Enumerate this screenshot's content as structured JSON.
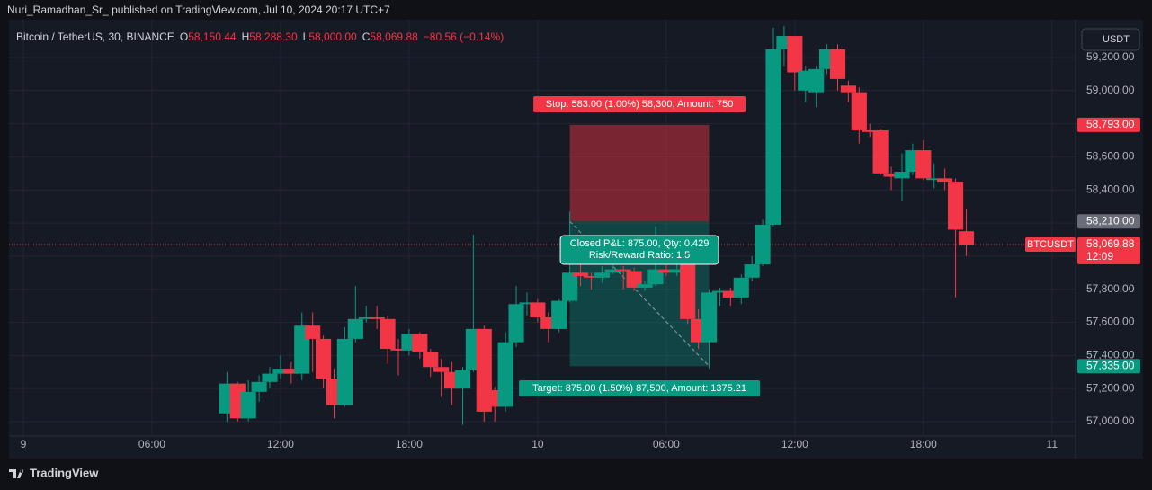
{
  "header": {
    "publisher": "Nuri_Ramadhan_Sr_ published on TradingView.com, Jul 10, 2024 20:17 UTC+7"
  },
  "footer": {
    "brand": "TradingView"
  },
  "chart_data": {
    "type": "candlestick",
    "legend": {
      "symbol": "Bitcoin / TetherUS, 30, BINANCE",
      "items": [
        {
          "key": "O",
          "value": "58,150.44"
        },
        {
          "key": "H",
          "value": "58,288.30"
        },
        {
          "key": "L",
          "value": "58,000.00"
        },
        {
          "key": "C",
          "value": "58,069.88"
        }
      ],
      "change": "−80.56 (−0.14%)"
    },
    "currency": "USDT",
    "up_color": "#089981",
    "down_color": "#f23645",
    "xlim": [
      -0.67,
      49.1
    ],
    "xticks": [
      {
        "value": 0,
        "label": "9"
      },
      {
        "value": 6,
        "label": "06:00"
      },
      {
        "value": 12,
        "label": "12:00"
      },
      {
        "value": 18,
        "label": "18:00"
      },
      {
        "value": 24,
        "label": "10"
      },
      {
        "value": 30,
        "label": "06:00"
      },
      {
        "value": 36,
        "label": "12:00"
      },
      {
        "value": 42,
        "label": "18:00"
      },
      {
        "value": 48,
        "label": "11"
      }
    ],
    "ylim": [
      56913,
      59428
    ],
    "yticks": [
      {
        "value": 57000,
        "label": "57,000.00"
      },
      {
        "value": 57200,
        "label": "57,200.00"
      },
      {
        "value": 57400,
        "label": "57,400.00"
      },
      {
        "value": 57600,
        "label": "57,600.00"
      },
      {
        "value": 57800,
        "label": "57,800.00"
      },
      {
        "value": 58000,
        "label": "58,000.00"
      },
      {
        "value": 58200,
        "label": "58,200.00"
      },
      {
        "value": 58400,
        "label": "58,400.00"
      },
      {
        "value": 58600,
        "label": "58,600.00"
      },
      {
        "value": 58800,
        "label": "58,800.00"
      },
      {
        "value": 59000,
        "label": "59,000.00"
      },
      {
        "value": 59200,
        "label": "59,200.00"
      }
    ],
    "grid": true,
    "x": [
      9.5,
      10,
      10.5,
      11,
      11.5,
      12,
      12.5,
      13,
      13.5,
      14,
      14.5,
      15,
      15.5,
      16,
      16.5,
      17,
      17.5,
      18,
      18.5,
      19,
      19.5,
      20,
      20.5,
      21,
      21.5,
      22,
      22.5,
      23,
      23.5,
      24,
      24.5,
      25,
      25.5,
      26,
      26.5,
      27,
      27.5,
      28,
      28.5,
      29,
      29.5,
      30,
      30.5,
      31,
      31.5,
      32,
      32.5,
      33,
      33.5,
      34,
      34.5,
      35,
      35.5,
      36,
      36.5,
      37,
      37.5,
      38,
      38.5,
      39,
      39.5,
      40,
      40.5,
      41,
      41.5,
      42,
      42.5,
      43,
      43.5,
      44
    ],
    "open": [
      57050,
      57230,
      57020,
      57180,
      57240,
      57290,
      57320,
      57290,
      57580,
      57500,
      57260,
      57100,
      57500,
      57620,
      57630,
      57620,
      57440,
      57430,
      57530,
      57420,
      57330,
      57300,
      57200,
      57310,
      57560,
      57190,
      57090,
      57480,
      57710,
      57720,
      57630,
      57560,
      57730,
      57900,
      57880,
      57870,
      57900,
      57920,
      57910,
      57810,
      57830,
      57920,
      57900,
      58030,
      57620,
      57480,
      57780,
      57790,
      57750,
      57870,
      57950,
      58190,
      59250,
      59330,
      59000,
      58990,
      59130,
      59250,
      59030,
      58990,
      58760,
      58760,
      58500,
      58470,
      58510,
      58640,
      58460,
      58470,
      58450,
      58150.44
    ],
    "high": [
      57300,
      57240,
      57250,
      57280,
      57330,
      57400,
      57360,
      57660,
      57660,
      57520,
      57320,
      57570,
      57820,
      57700,
      57700,
      57640,
      57500,
      57560,
      57540,
      57440,
      57380,
      57360,
      57330,
      58130,
      57580,
      57210,
      57540,
      57820,
      57780,
      57740,
      57660,
      57740,
      58270,
      57960,
      57900,
      57940,
      57950,
      57940,
      57930,
      57850,
      58180,
      57950,
      57950,
      58050,
      57680,
      57800,
      57810,
      57810,
      57890,
      58000,
      58220,
      59380,
      59390,
      59330,
      59150,
      59150,
      59280,
      59280,
      59060,
      59020,
      58800,
      58770,
      58540,
      58620,
      58680,
      58700,
      58560,
      58530,
      58470,
      58288.3
    ],
    "low": [
      57000,
      57000,
      57000,
      57120,
      57200,
      57260,
      57230,
      57250,
      57300,
      57200,
      57020,
      57090,
      57480,
      57600,
      57560,
      57350,
      57280,
      57400,
      57380,
      57270,
      57150,
      57100,
      56980,
      57300,
      57000,
      57000,
      57060,
      57450,
      57640,
      57600,
      57480,
      57540,
      57720,
      57820,
      57800,
      57840,
      57890,
      57800,
      57790,
      57790,
      57820,
      57880,
      57880,
      57590,
      57440,
      57320,
      57700,
      57700,
      57710,
      57850,
      57940,
      58180,
      59150,
      59000,
      58930,
      58900,
      59100,
      59000,
      58930,
      58680,
      58720,
      58490,
      58400,
      58330,
      58490,
      58460,
      58410,
      58400,
      57750,
      58000.0
    ],
    "close": [
      57230,
      57020,
      57180,
      57240,
      57290,
      57320,
      57290,
      57580,
      57500,
      57260,
      57100,
      57500,
      57620,
      57630,
      57620,
      57440,
      57430,
      57530,
      57420,
      57330,
      57300,
      57200,
      57310,
      57560,
      57060,
      57090,
      57480,
      57710,
      57720,
      57630,
      57560,
      57730,
      57900,
      57880,
      57870,
      57900,
      57920,
      57910,
      57810,
      57830,
      57920,
      57900,
      57920,
      57620,
      57480,
      57780,
      57790,
      57750,
      57870,
      57950,
      58190,
      59250,
      59330,
      59110,
      59120,
      59130,
      59250,
      59070,
      58990,
      58760,
      58750,
      58500,
      58480,
      58510,
      58640,
      58470,
      58470,
      58450,
      58160,
      58069.88
    ],
    "position": {
      "x_start": 25.5,
      "x_end": 32,
      "entry": 58210,
      "stop": 58793,
      "target": 57335,
      "stop_label": "Stop: 583.00 (1.00%) 58,300, Amount: 750",
      "target_label": "Target: 875.00 (1.50%) 87,500, Amount: 1375.21",
      "closed_label": "Closed P&L: 875.00, Qty: 0.429",
      "ratio_label": "Risk/Reward Ratio: 1.5"
    },
    "price_labels": [
      {
        "value": 58793,
        "label": "58,793.00",
        "color": "#f23645"
      },
      {
        "value": 58210,
        "label": "58,210.00",
        "color": "#6a6d78"
      },
      {
        "value": 58069.88,
        "label": "58,069.88",
        "sub": "12:09",
        "color": "#f23645",
        "symbol": "BTCUSDT"
      },
      {
        "value": 57335,
        "label": "57,335.00",
        "color": "#089981"
      }
    ]
  }
}
